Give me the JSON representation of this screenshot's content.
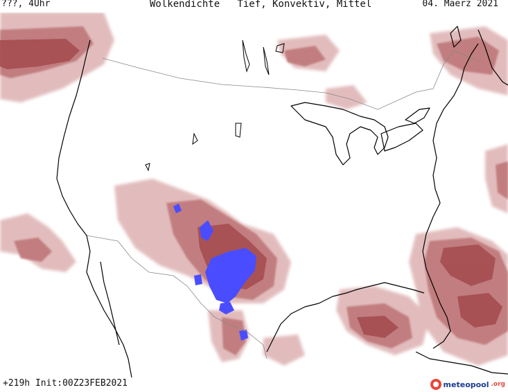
{
  "header": {
    "left": "???, 4Uhr",
    "center": "Wolkendichte   Tief, Konvektiv, Mittel",
    "right": "04. Maerz 2021"
  },
  "footer": {
    "init": "+219h  Init:00Z23FEB2021",
    "logo_main": "meteopool",
    "logo_tld": ".org"
  },
  "colors": {
    "cloud_dense": "#a34a4d",
    "cloud_medium": "#c07a7c",
    "cloud_light": "#dfb5b6",
    "convective": "#4a4dff",
    "coast": "#000000",
    "border": "#888888"
  }
}
